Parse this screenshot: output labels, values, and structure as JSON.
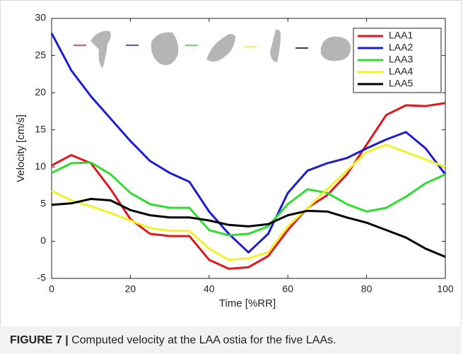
{
  "chart_data": {
    "type": "line",
    "xlabel": "Time [%RR]",
    "ylabel": "Velocity [cm/s]",
    "x": [
      0,
      5,
      10,
      15,
      20,
      25,
      30,
      35,
      40,
      45,
      50,
      55,
      60,
      65,
      70,
      75,
      80,
      85,
      90,
      95,
      100
    ],
    "series": [
      {
        "name": "LAA1",
        "color": "#e3161b",
        "values": [
          10.2,
          11.6,
          10.5,
          7,
          3,
          1,
          0.7,
          0.7,
          -2.5,
          -3.7,
          -3.5,
          -2,
          1.5,
          4.5,
          6.2,
          9,
          13,
          17,
          18.3,
          18.2,
          18.6
        ]
      },
      {
        "name": "LAA2",
        "color": "#1c1cd4",
        "values": [
          28,
          23,
          19.5,
          16.5,
          13.5,
          10.8,
          9.2,
          8,
          4,
          1,
          -1.5,
          1,
          6.5,
          9.5,
          10.5,
          11.2,
          12.5,
          13.7,
          14.7,
          12.5,
          9
        ]
      },
      {
        "name": "LAA3",
        "color": "#2ede2e",
        "values": [
          9.2,
          10.5,
          10.6,
          9,
          6.5,
          5,
          4.5,
          4.5,
          1.5,
          0.8,
          1,
          2,
          5,
          7,
          6.5,
          5,
          4,
          4.5,
          6,
          7.8,
          9
        ]
      },
      {
        "name": "LAA4",
        "color": "#f2f226",
        "values": [
          6.8,
          5.5,
          4.7,
          3.8,
          2.8,
          1.8,
          1.4,
          1.4,
          -1,
          -2.5,
          -2.3,
          -1.5,
          2,
          4.5,
          7,
          9.5,
          12,
          13,
          12,
          11,
          10
        ]
      },
      {
        "name": "LAA5",
        "color": "#000000",
        "values": [
          4.9,
          5.1,
          5.7,
          5.5,
          4.2,
          3.5,
          3.2,
          3.2,
          2.8,
          2.2,
          2,
          2.3,
          3.5,
          4.1,
          4,
          3.2,
          2.5,
          1.5,
          0.5,
          -1,
          -2.1
        ]
      }
    ],
    "xlim": [
      0,
      100
    ],
    "xticks": [
      0,
      20,
      40,
      60,
      80,
      100
    ],
    "ylim": [
      -5,
      30
    ],
    "yticks": [
      -5,
      0,
      5,
      10,
      15,
      20,
      25,
      30
    ],
    "grid": false,
    "legend": "upper-right"
  },
  "caption": {
    "label": "FIGURE 7 |",
    "text": " Computed velocity at the LAA ostia for the five LAAs."
  }
}
